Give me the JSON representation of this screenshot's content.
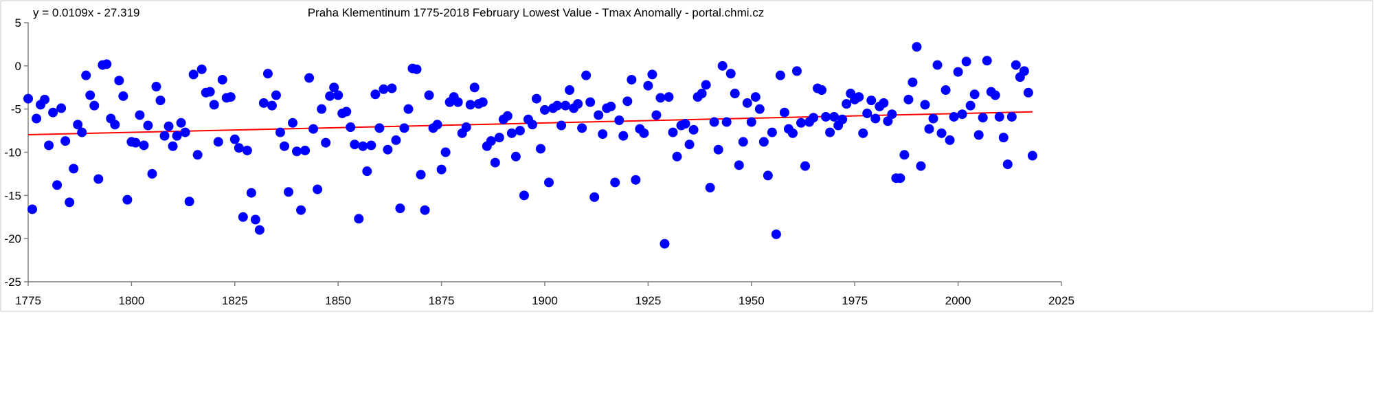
{
  "chart_data": {
    "type": "scatter",
    "title": "Praha Klementinum 1775-2018 February Lowest Value - Tmax Anomally - portal.chmi.cz",
    "trendline_label": "y = 0.0109x - 27.319",
    "trendline": {
      "slope": 0.0109,
      "intercept": -27.319,
      "x_range": [
        1775,
        2018
      ]
    },
    "xlabel": "",
    "ylabel": "",
    "xlim": [
      1775,
      2025
    ],
    "ylim": [
      -25,
      5
    ],
    "xticks": [
      1775,
      1800,
      1825,
      1850,
      1875,
      1900,
      1925,
      1950,
      1975,
      2000,
      2025
    ],
    "yticks": [
      5,
      0,
      -5,
      -10,
      -15,
      -20,
      -25
    ],
    "grid": false,
    "colors": {
      "points": "#0000ff",
      "trend": "#ff0000"
    },
    "x_start": 1775,
    "values": [
      -3.8,
      -16.6,
      -6.1,
      -4.5,
      -3.9,
      -9.2,
      -5.4,
      -13.8,
      -4.9,
      -8.7,
      -15.8,
      -11.9,
      -6.8,
      -7.7,
      -1.1,
      -3.4,
      -4.6,
      -13.1,
      0.1,
      0.2,
      -6.1,
      -6.8,
      -1.7,
      -3.5,
      -15.5,
      -8.8,
      -8.9,
      -5.7,
      -9.2,
      -6.9,
      -12.5,
      -2.4,
      -4.0,
      -8.1,
      -7.0,
      -9.3,
      -8.1,
      -6.6,
      -7.7,
      -15.7,
      -1.0,
      -10.3,
      -0.4,
      -3.1,
      -3.0,
      -4.5,
      -8.8,
      -1.6,
      -3.7,
      -3.6,
      -8.5,
      -9.5,
      -17.5,
      -9.8,
      -14.7,
      -17.8,
      -19.0,
      -4.3,
      -0.9,
      -4.6,
      -3.4,
      -7.7,
      -9.3,
      -14.6,
      -6.6,
      -9.9,
      -16.7,
      -9.8,
      -1.4,
      -7.3,
      -14.3,
      -5.0,
      -8.9,
      -3.5,
      -2.5,
      -3.4,
      -5.5,
      -5.3,
      -7.1,
      -9.1,
      -17.7,
      -9.3,
      -12.2,
      -9.2,
      -3.3,
      -7.2,
      -2.7,
      -9.7,
      -2.6,
      -8.6,
      -16.5,
      -7.2,
      -5.0,
      -0.3,
      -0.4,
      -12.6,
      -16.7,
      -3.4,
      -7.2,
      -6.8,
      -12.0,
      -10.0,
      -4.2,
      -3.6,
      -4.2,
      -7.8,
      -7.1,
      -4.5,
      -2.5,
      -4.4,
      -4.2,
      -9.3,
      -8.7,
      -11.2,
      -8.3,
      -6.2,
      -5.8,
      -7.8,
      -10.5,
      -7.5,
      -15.0,
      -6.2,
      -6.8,
      -3.8,
      -9.6,
      -5.1,
      -13.5,
      -4.9,
      -4.6,
      -6.9,
      -4.6,
      -2.8,
      -4.9,
      -4.4,
      -7.2,
      -1.1,
      -4.2,
      -15.2,
      -5.7,
      -7.9,
      -4.9,
      -4.7,
      -13.5,
      -6.3,
      -8.1,
      -4.1,
      -1.6,
      -13.2,
      -7.3,
      -7.8,
      -2.3,
      -1.0,
      -5.7,
      -3.7,
      -20.6,
      -3.6,
      -7.7,
      -10.5,
      -6.9,
      -6.7,
      -9.1,
      -7.4,
      -3.6,
      -3.2,
      -2.2,
      -14.1,
      -6.5,
      -9.7,
      0.0,
      -6.5,
      -0.9,
      -3.2,
      -11.5,
      -8.8,
      -4.3,
      -6.5,
      -3.6,
      -5.0,
      -8.8,
      -12.7,
      -7.7,
      -19.5,
      -1.1,
      -5.4,
      -7.3,
      -7.8,
      -0.6,
      -6.6,
      -11.6,
      -6.5,
      -6.0,
      -2.6,
      -2.8,
      -5.9,
      -7.7,
      -5.9,
      -6.9,
      -6.2,
      -4.4,
      -3.2,
      -3.9,
      -3.6,
      -7.8,
      -5.5,
      -4.0,
      -6.1,
      -4.7,
      -4.3,
      -6.4,
      -5.6,
      -13.0,
      -13.0,
      -10.3,
      -3.9,
      -1.9,
      2.2,
      -11.6,
      -4.5,
      -7.3,
      -6.1,
      0.1,
      -7.8,
      -2.8,
      -8.6,
      -5.9,
      -0.7,
      -5.6,
      0.5,
      -4.6,
      -3.3,
      -8.0,
      -6.0,
      0.6,
      -3.0,
      -3.4,
      -5.9,
      -8.3,
      -11.4,
      -5.9,
      0.1,
      -1.3,
      -0.6,
      -3.1,
      -10.4
    ]
  }
}
